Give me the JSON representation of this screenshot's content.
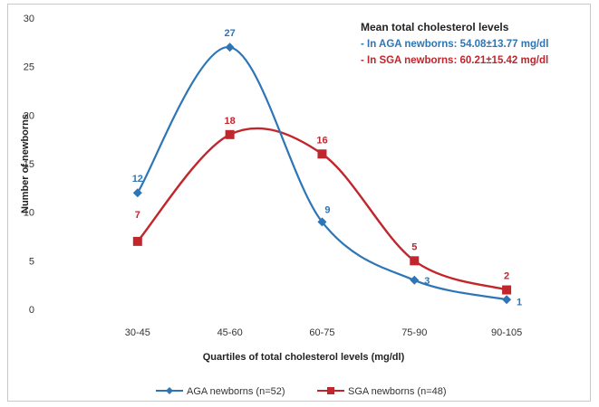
{
  "chart_data": {
    "type": "line",
    "categories": [
      "30-45",
      "45-60",
      "60-75",
      "75-90",
      "90-105"
    ],
    "series": [
      {
        "name": "AGA newborns (n=52)",
        "values": [
          12,
          27,
          9,
          3,
          1
        ],
        "color": "#2E75B6",
        "marker": "diamond"
      },
      {
        "name": "SGA newborns (n=48)",
        "values": [
          7,
          18,
          16,
          5,
          2
        ],
        "color": "#C0262C",
        "marker": "square"
      }
    ],
    "xlabel": "Quartiles of total cholesterol levels (mg/dl)",
    "ylabel": "Number of newborns",
    "ylim": [
      0,
      30
    ],
    "yticks": [
      0,
      5,
      10,
      15,
      20,
      25,
      30
    ],
    "grid": false,
    "smooth": true,
    "legend": "bottom",
    "annotation": {
      "title": "Mean total cholesterol levels",
      "lines": [
        {
          "text": "- In AGA newborns: 54.08±13.77 mg/dl",
          "color": "#2E75B6"
        },
        {
          "text": "- In SGA newborns: 60.21±15.42 mg/dl",
          "color": "#C0262C"
        }
      ]
    }
  }
}
